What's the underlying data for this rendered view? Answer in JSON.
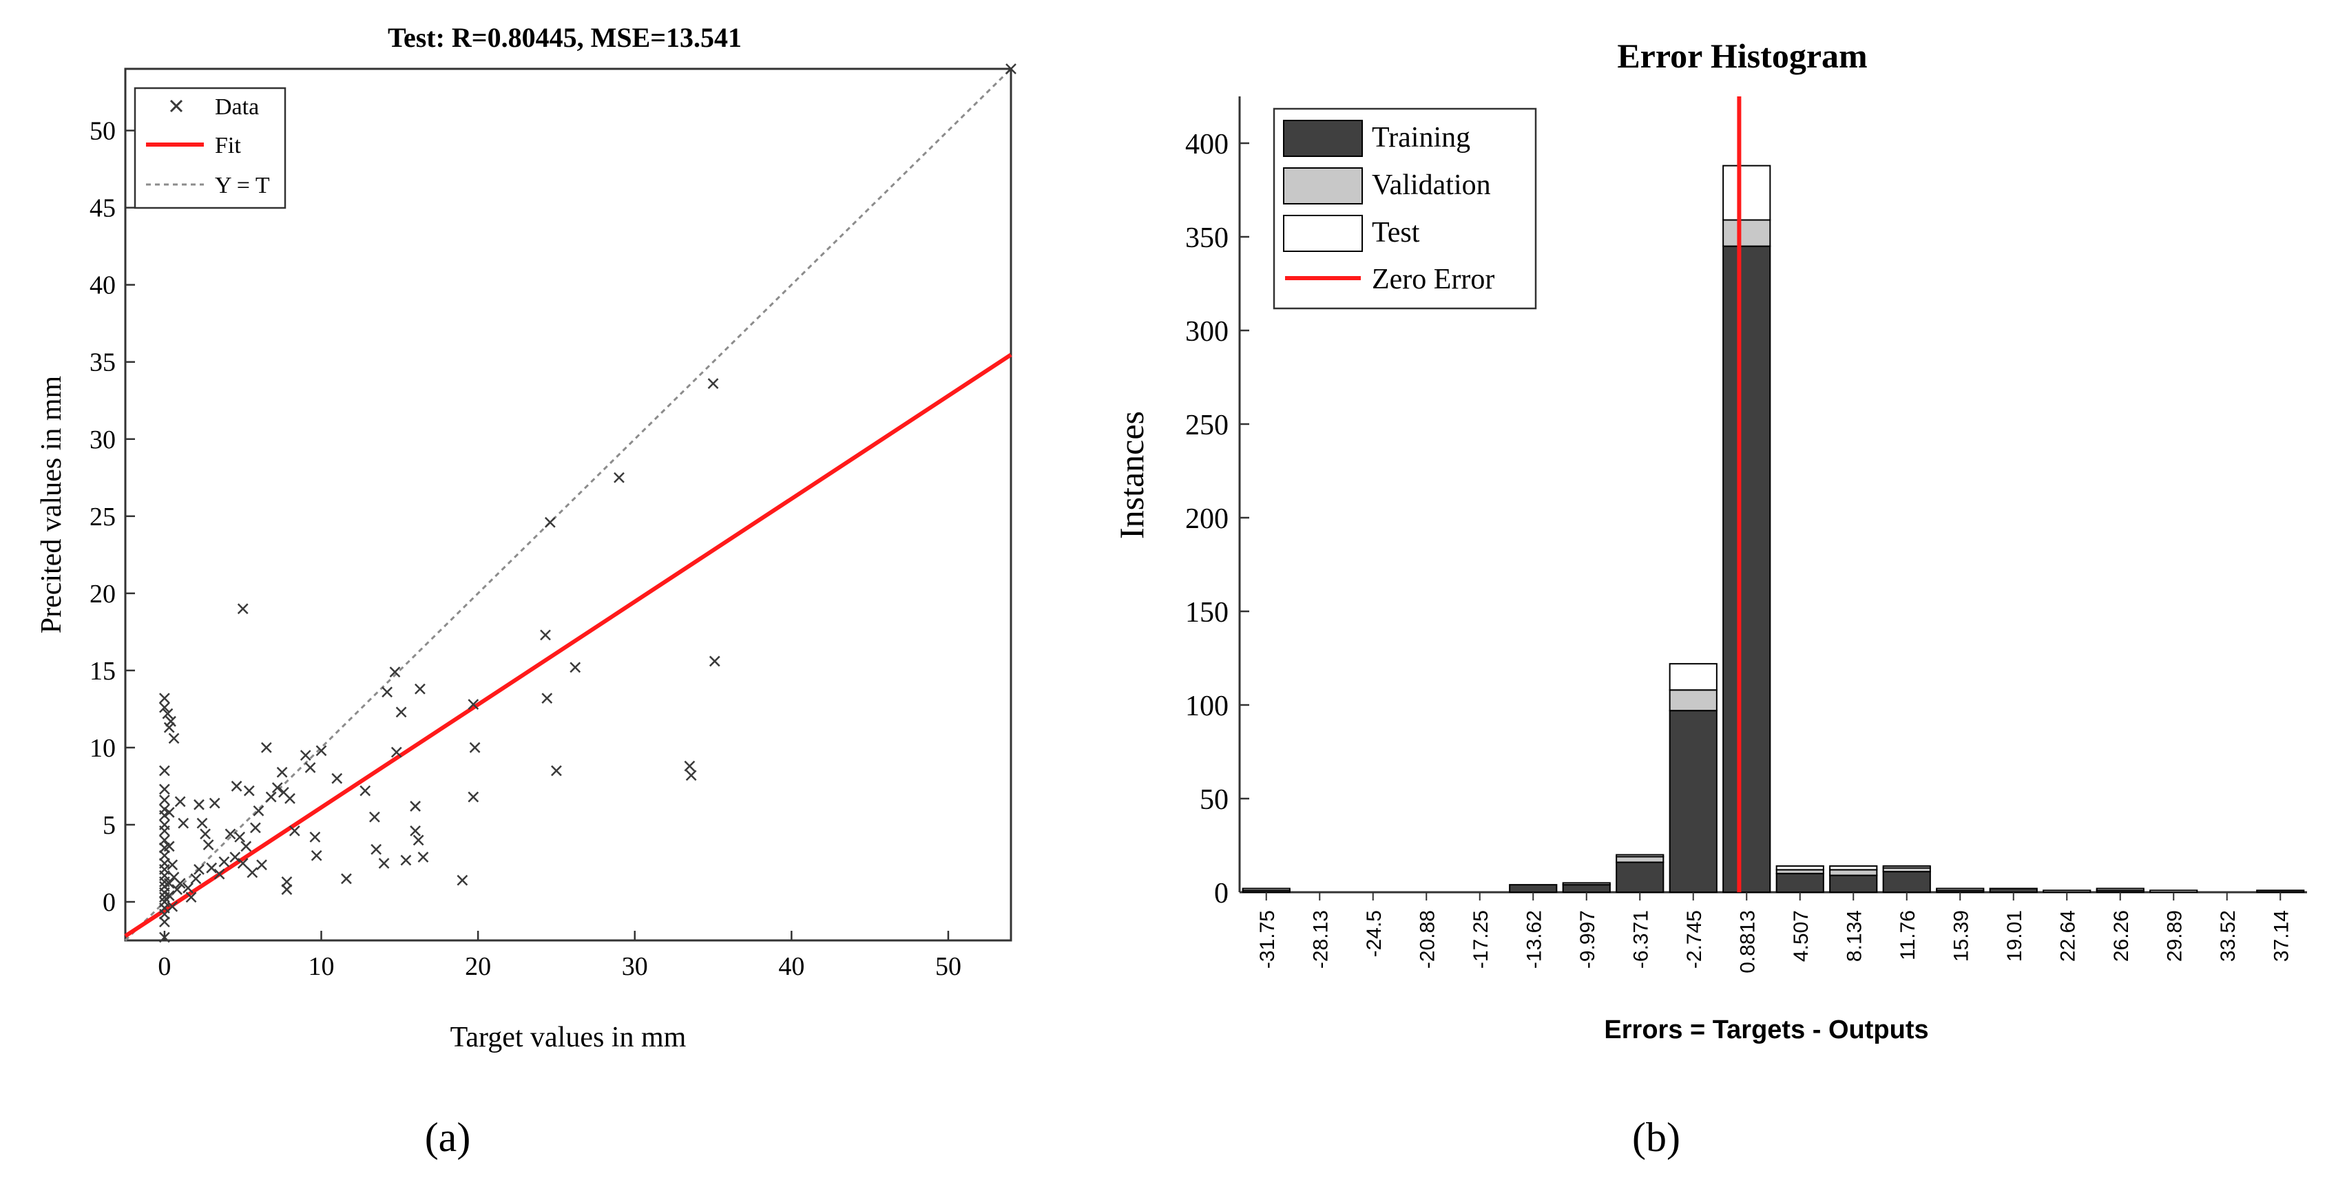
{
  "panel_labels": [
    "(a)",
    "(b)"
  ],
  "chart_data": [
    {
      "type": "scatter",
      "title": "Test: R=0.80445, MSE=13.541",
      "xlabel": "Target values in mm",
      "ylabel": "Precited values in mm",
      "xlim": [
        -2.5,
        54
      ],
      "ylim": [
        -2.5,
        54
      ],
      "xticks": [
        0,
        10,
        20,
        30,
        40,
        50
      ],
      "yticks": [
        0,
        5,
        10,
        15,
        20,
        25,
        30,
        35,
        40,
        45,
        50
      ],
      "legend": {
        "position": "top-left",
        "entries": [
          "Data",
          "Fit",
          "Y = T"
        ]
      },
      "colors": {
        "fit": "#ff1a1a",
        "identity": "#8c8c8c",
        "data": "#3a3a3a"
      },
      "fit": {
        "slope": 0.667,
        "intercept": -0.55
      },
      "series": [
        {
          "name": "Data",
          "points": [
            [
              0,
              13.2
            ],
            [
              0,
              12.6
            ],
            [
              0.2,
              12.2
            ],
            [
              0.4,
              11.7
            ],
            [
              0.3,
              11.3
            ],
            [
              0.6,
              10.6
            ],
            [
              0,
              8.5
            ],
            [
              0,
              7.3
            ],
            [
              0,
              6.6
            ],
            [
              0,
              6
            ],
            [
              0,
              5.6
            ],
            [
              0,
              5
            ],
            [
              0,
              4.6
            ],
            [
              0,
              4
            ],
            [
              0,
              3.5
            ],
            [
              0,
              3
            ],
            [
              0,
              2.5
            ],
            [
              0,
              2.1
            ],
            [
              0,
              1.7
            ],
            [
              0,
              1.3
            ],
            [
              0,
              1
            ],
            [
              0,
              0.6
            ],
            [
              0,
              0.3
            ],
            [
              0,
              0
            ],
            [
              0,
              -0.4
            ],
            [
              0,
              -0.8
            ],
            [
              0,
              -1.3
            ],
            [
              0,
              -2.3
            ],
            [
              0.3,
              5.8
            ],
            [
              0.3,
              3.6
            ],
            [
              0.3,
              1.2
            ],
            [
              0.3,
              0.4
            ],
            [
              0.5,
              2.4
            ],
            [
              0.5,
              -0.3
            ],
            [
              0.6,
              1.6
            ],
            [
              0.8,
              0.8
            ],
            [
              1,
              1.2
            ],
            [
              1,
              6.5
            ],
            [
              1.2,
              5.1
            ],
            [
              1.5,
              0.9
            ],
            [
              1.7,
              0.3
            ],
            [
              2,
              1.5
            ],
            [
              2.2,
              2.1
            ],
            [
              2.2,
              6.3
            ],
            [
              2.4,
              5.1
            ],
            [
              2.6,
              4.4
            ],
            [
              2.8,
              3.7
            ],
            [
              3,
              2.2
            ],
            [
              3.2,
              6.4
            ],
            [
              3.5,
              1.8
            ],
            [
              3.8,
              2.6
            ],
            [
              4.2,
              4.4
            ],
            [
              4.5,
              2.9
            ],
            [
              4.6,
              7.5
            ],
            [
              4.8,
              4.2
            ],
            [
              5,
              2.5
            ],
            [
              5.2,
              3.6
            ],
            [
              5.4,
              7.2
            ],
            [
              5.6,
              1.9
            ],
            [
              5.8,
              4.8
            ],
            [
              6,
              5.9
            ],
            [
              6.2,
              2.4
            ],
            [
              5,
              19
            ],
            [
              6.5,
              10
            ],
            [
              6.8,
              6.8
            ],
            [
              7.2,
              7.4
            ],
            [
              7.5,
              8.4
            ],
            [
              7.6,
              7.1
            ],
            [
              7.8,
              1.3
            ],
            [
              7.8,
              0.8
            ],
            [
              8,
              6.7
            ],
            [
              8.3,
              4.6
            ],
            [
              9,
              9.5
            ],
            [
              9.3,
              8.7
            ],
            [
              9.6,
              4.2
            ],
            [
              9.7,
              3
            ],
            [
              10,
              9.8
            ],
            [
              11,
              8
            ],
            [
              11.6,
              1.5
            ],
            [
              12.8,
              7.2
            ],
            [
              13.4,
              5.5
            ],
            [
              13.5,
              3.4
            ],
            [
              14,
              2.5
            ],
            [
              14.2,
              13.6
            ],
            [
              14.7,
              14.9
            ],
            [
              14.8,
              9.7
            ],
            [
              15.1,
              12.3
            ],
            [
              15.4,
              2.7
            ],
            [
              16,
              6.2
            ],
            [
              16,
              4.6
            ],
            [
              16.2,
              4
            ],
            [
              16.3,
              13.8
            ],
            [
              16.5,
              2.9
            ],
            [
              19,
              1.4
            ],
            [
              19.7,
              12.8
            ],
            [
              19.8,
              10
            ],
            [
              19.7,
              6.8
            ],
            [
              24.3,
              17.3
            ],
            [
              24.4,
              13.2
            ],
            [
              24.6,
              24.6
            ],
            [
              25,
              8.5
            ],
            [
              26.2,
              15.2
            ],
            [
              29,
              27.5
            ],
            [
              33.5,
              8.8
            ],
            [
              33.6,
              8.2
            ],
            [
              35,
              33.6
            ],
            [
              35.1,
              15.6
            ],
            [
              54,
              54
            ]
          ]
        }
      ]
    },
    {
      "type": "bar",
      "title": "Error Histogram",
      "xlabel": "Errors = Targets - Outputs",
      "ylabel": "Instances",
      "ylim": [
        0,
        425
      ],
      "yticks": [
        0,
        50,
        100,
        150,
        200,
        250,
        300,
        350,
        400
      ],
      "categories": [
        "-31.75",
        "-28.13",
        "-24.5",
        "-20.88",
        "-17.25",
        "-13.62",
        "-9.997",
        "-6.371",
        "-2.745",
        "0.8813",
        "4.507",
        "8.134",
        "11.76",
        "15.39",
        "19.01",
        "22.64",
        "26.26",
        "29.89",
        "33.52",
        "37.14"
      ],
      "stacked": true,
      "zero_error": {
        "label": "Zero Error",
        "bin_position": 9.0,
        "color": "#ff1a1a"
      },
      "legend": {
        "position": "top-left",
        "entries": [
          "Training",
          "Validation",
          "Test",
          "Zero Error"
        ]
      },
      "series": [
        {
          "name": "Training",
          "color": "#404040",
          "values": [
            1,
            0,
            0,
            0,
            0,
            4,
            4,
            16,
            97,
            345,
            10,
            9,
            11,
            1,
            2,
            0,
            1,
            0,
            0,
            1
          ]
        },
        {
          "name": "Validation",
          "color": "#c8c8c8",
          "values": [
            0,
            0,
            0,
            0,
            0,
            0,
            1,
            3,
            11,
            14,
            2,
            3,
            2,
            0,
            0,
            1,
            0,
            0,
            0,
            0
          ]
        },
        {
          "name": "Test",
          "color": "#ffffff",
          "values": [
            1,
            0,
            0,
            0,
            0,
            0,
            0,
            1,
            14,
            29,
            2,
            2,
            1,
            1,
            0,
            0,
            1,
            1,
            0,
            0
          ]
        }
      ]
    }
  ]
}
